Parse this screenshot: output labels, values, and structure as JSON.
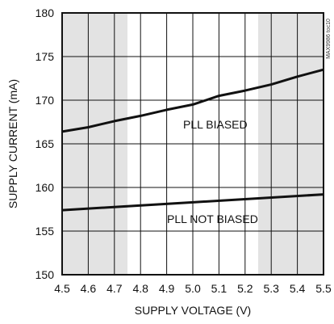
{
  "chart_data": {
    "type": "line",
    "xlabel": "SUPPLY VOLTAGE (V)",
    "ylabel": "SUPPLY CURRENT (mA)",
    "xlim": [
      4.5,
      5.5
    ],
    "ylim": [
      150,
      180
    ],
    "x_ticks": [
      "4.5",
      "4.6",
      "4.7",
      "4.8",
      "4.9",
      "5.0",
      "5.1",
      "5.2",
      "5.3",
      "5.4",
      "5.5"
    ],
    "y_ticks": [
      "150",
      "155",
      "160",
      "165",
      "170",
      "175",
      "180"
    ],
    "grid": true,
    "shaded_x_ranges": [
      [
        4.5,
        4.75
      ],
      [
        5.25,
        5.5
      ]
    ],
    "series": [
      {
        "name": "PLL BIASED",
        "x": [
          4.5,
          4.6,
          4.7,
          4.8,
          4.9,
          5.0,
          5.1,
          5.2,
          5.3,
          5.4,
          5.5
        ],
        "y": [
          166.4,
          166.9,
          167.6,
          168.2,
          168.9,
          169.5,
          170.5,
          171.1,
          171.8,
          172.7,
          173.5
        ]
      },
      {
        "name": "PLL NOT BIASED",
        "x": [
          4.5,
          5.0,
          5.5
        ],
        "y": [
          157.4,
          158.3,
          159.2
        ]
      }
    ],
    "annotations": [
      "PLL BIASED",
      "PLL NOT BIASED"
    ],
    "figure_note": "MAX9986 toc10"
  }
}
